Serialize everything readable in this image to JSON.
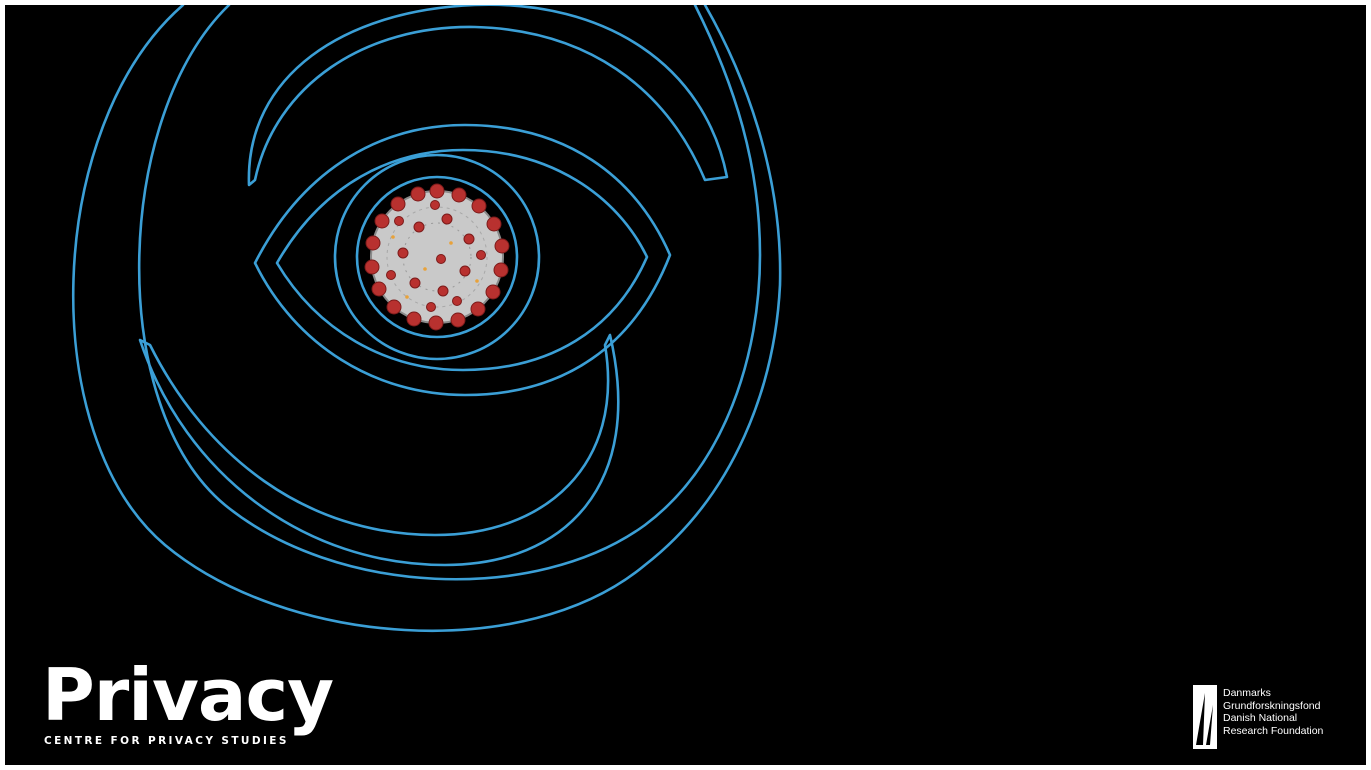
{
  "slide": {
    "background": "#000000",
    "accent_color": "#3b9fd6",
    "virus_colors": {
      "core": "#c9c9c9",
      "spike": "#b8312f"
    }
  },
  "brand": {
    "wordmark": "Privacy",
    "tagline": "CENTRE FOR PRIVACY STUDIES"
  },
  "foundation": {
    "lines": [
      "Danmarks",
      "Grundforskningsfond",
      "Danish National",
      "Research Foundation"
    ]
  }
}
